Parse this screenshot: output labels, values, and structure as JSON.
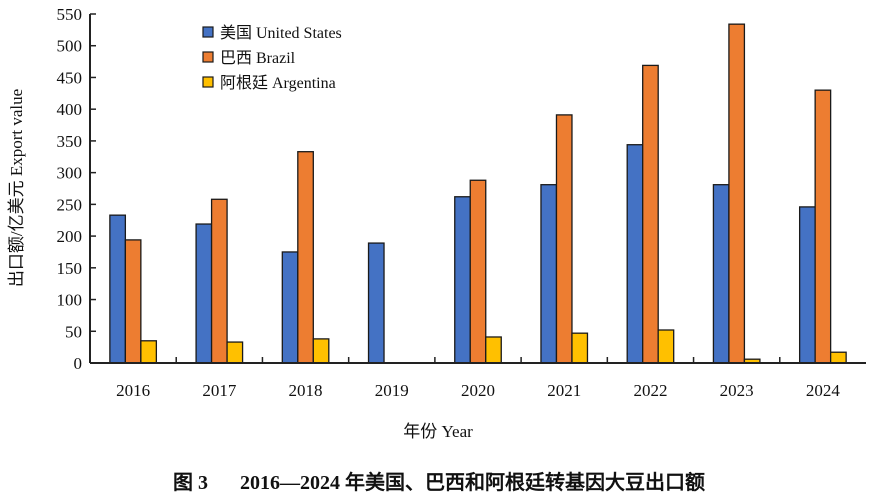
{
  "chart_data": {
    "type": "bar",
    "title": "",
    "xlabel": "年份 Year",
    "ylabel": "出口额/亿美元 Export value",
    "ylim": [
      0,
      550
    ],
    "yticks": [
      0,
      50,
      100,
      150,
      200,
      250,
      300,
      350,
      400,
      450,
      500,
      550
    ],
    "grid": false,
    "legend_position": "top-left",
    "categories": [
      "2016",
      "2017",
      "2018",
      "2019",
      "2020",
      "2021",
      "2022",
      "2023",
      "2024"
    ],
    "series": [
      {
        "name": "美国  United States",
        "color": "#4472C4",
        "values": [
          233,
          219,
          175,
          189,
          262,
          281,
          344,
          281,
          246
        ]
      },
      {
        "name": "巴西  Brazil",
        "color": "#ED7D31",
        "values": [
          194,
          258,
          333,
          null,
          288,
          391,
          469,
          534,
          430
        ]
      },
      {
        "name": "阿根廷  Argentina",
        "color": "#FFC000",
        "values": [
          35,
          33,
          38,
          null,
          41,
          47,
          52,
          6,
          17
        ]
      }
    ]
  },
  "caption": {
    "label": "图 3",
    "text": "2016—2024 年美国、巴西和阿根廷转基因大豆出口额"
  }
}
